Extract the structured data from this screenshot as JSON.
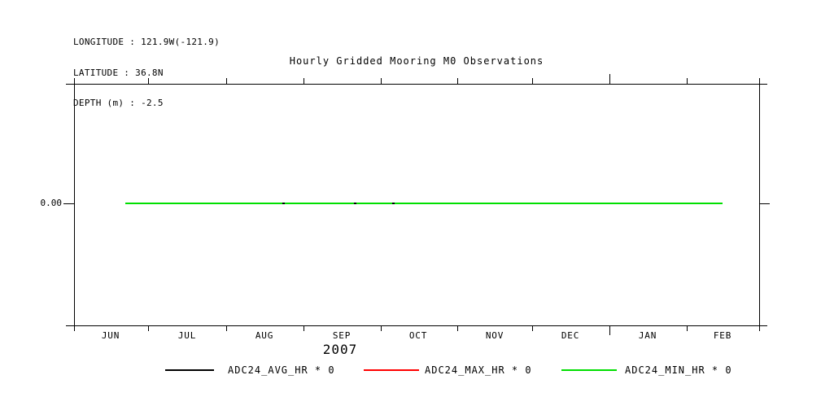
{
  "header": {
    "longitude": "LONGITUDE : 121.9W(-121.9)",
    "latitude": "LATITUDE : 36.8N",
    "depth": "DEPTH (m) : -2.5"
  },
  "title": "Hourly Gridded Mooring M0 Observations",
  "y_axis": {
    "zero_label": "0.00"
  },
  "x_axis": {
    "months": [
      "JUN",
      "JUL",
      "AUG",
      "SEP",
      "OCT",
      "NOV",
      "DEC",
      "JAN",
      "FEB"
    ],
    "year": "2007"
  },
  "legend": [
    {
      "label": "ADC24_AVG_HR * 0",
      "color": "#000000"
    },
    {
      "label": "ADC24_MAX_HR * 0",
      "color": "#ff0000"
    },
    {
      "label": "ADC24_MIN_HR * 0",
      "color": "#00df00"
    }
  ],
  "colors": {
    "background": "#ffffff",
    "axis": "#000000",
    "avg_series": "#000000",
    "max_series": "#ff0000",
    "min_series": "#00df00"
  },
  "chart_data": {
    "type": "line",
    "title": "Hourly Gridded Mooring M0 Observations",
    "subtitle_block": [
      "LONGITUDE : 121.9W(-121.9)",
      "LATITUDE : 36.8N",
      "DEPTH (m) : -2.5"
    ],
    "x_axis": {
      "kind": "time",
      "tick_unit": "month start",
      "tick_labels": [
        "JUN",
        "JUL",
        "AUG",
        "SEP",
        "OCT",
        "NOV",
        "DEC",
        "JAN",
        "FEB"
      ],
      "year_label": "2007",
      "range": "Jun 2007 to Mar 2008",
      "long_tick_at": "JAN 1 (year boundary)"
    },
    "y_axis": {
      "tick_labels": [
        "0.00"
      ],
      "ticks_at": [
        0.0
      ]
    },
    "series": [
      {
        "name": "ADC24_AVG_HR * 0",
        "color": "#000000",
        "y_constant": 0.0,
        "note": "constant zero line, hidden beneath MIN series except tiny gaps"
      },
      {
        "name": "ADC24_MAX_HR * 0",
        "color": "#ff0000",
        "y_constant": 0.0,
        "note": "constant zero line, hidden beneath MIN series"
      },
      {
        "name": "ADC24_MIN_HR * 0",
        "color": "#00df00",
        "y_constant": 0.0,
        "note": "constant zero line drawn from ~Jun 21 2007 to ~Feb 15 2008"
      }
    ],
    "grid": false,
    "legend_position": "below chart"
  }
}
